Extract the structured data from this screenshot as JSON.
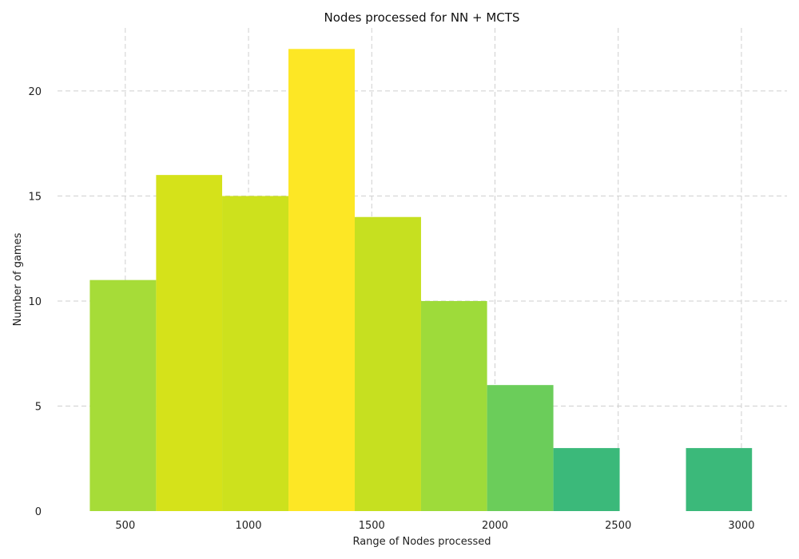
{
  "chart_data": {
    "type": "bar",
    "title": "Nodes processed for NN + MCTS",
    "xlabel": "Range of Nodes processed",
    "ylabel": "Number of games",
    "xlim": [
      225,
      3185
    ],
    "ylim": [
      0,
      23
    ],
    "x_ticks": [
      500,
      1000,
      1500,
      2000,
      2500,
      3000
    ],
    "y_ticks": [
      0,
      5,
      10,
      15,
      20
    ],
    "grid": true,
    "colormap": "viridis",
    "bins": [
      {
        "start": 356,
        "end": 625,
        "value": 11,
        "color": "#a6dc38"
      },
      {
        "start": 625,
        "end": 893,
        "value": 16,
        "color": "#d5e21a"
      },
      {
        "start": 893,
        "end": 1162,
        "value": 15,
        "color": "#cde11d"
      },
      {
        "start": 1162,
        "end": 1431,
        "value": 22,
        "color": "#fde725"
      },
      {
        "start": 1431,
        "end": 1700,
        "value": 14,
        "color": "#c6e020"
      },
      {
        "start": 1700,
        "end": 1968,
        "value": 10,
        "color": "#9edb3a"
      },
      {
        "start": 1968,
        "end": 2237,
        "value": 6,
        "color": "#6bcd5a"
      },
      {
        "start": 2237,
        "end": 2506,
        "value": 3,
        "color": "#3bb97a"
      },
      {
        "start": 2506,
        "end": 2775,
        "value": 0,
        "color": "#3bb97a"
      },
      {
        "start": 2775,
        "end": 3043,
        "value": 3,
        "color": "#3bb97a"
      }
    ]
  }
}
